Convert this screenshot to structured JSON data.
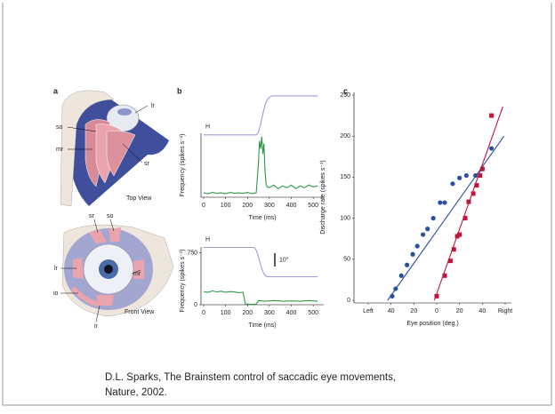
{
  "illustration": {
    "panel": "a",
    "top_view": {
      "labels": [
        "lr",
        "so",
        "mr",
        "sr"
      ],
      "caption": "Top View"
    },
    "front_view": {
      "labels": [
        "sr",
        "so",
        "lr",
        "mr",
        "io",
        "ir"
      ],
      "caption": "Front View"
    }
  },
  "chart_data": [
    {
      "type": "line",
      "panel": "b",
      "xlabel": "Time (ms)",
      "ylabel": "Frequency (spikes s⁻¹)",
      "xlim": [
        0,
        540
      ],
      "xticks": [
        0,
        100,
        200,
        300,
        400,
        500
      ],
      "ylim": [
        0,
        1200
      ],
      "y2lim": [
        -48,
        32
      ],
      "series": [
        {
          "name": "H",
          "color": "#a996d9",
          "axis": "y2",
          "x": [
            0,
            240,
            250,
            260,
            270,
            280,
            290,
            300,
            310,
            520
          ],
          "values": [
            0,
            0,
            2,
            8,
            16,
            23,
            27,
            29,
            30,
            30
          ]
        },
        {
          "color": "#2e9a4a",
          "x": [
            0,
            20,
            40,
            60,
            80,
            100,
            120,
            140,
            160,
            180,
            200,
            220,
            240,
            250,
            255,
            260,
            265,
            270,
            275,
            280,
            285,
            290,
            300,
            320,
            340,
            360,
            380,
            400,
            420,
            440,
            460,
            480,
            500,
            520
          ],
          "values": [
            50,
            40,
            55,
            45,
            50,
            40,
            55,
            45,
            50,
            45,
            55,
            40,
            50,
            400,
            650,
            560,
            700,
            500,
            620,
            300,
            150,
            120,
            110,
            140,
            100,
            130,
            110,
            140,
            100,
            130,
            110,
            140,
            120,
            130
          ]
        }
      ]
    },
    {
      "type": "line",
      "xlabel": "Time (ms)",
      "ylabel": "Frequency (spikes s⁻¹)",
      "xlim": [
        0,
        540
      ],
      "xticks": [
        0,
        100,
        200,
        300,
        400,
        500
      ],
      "ylim": [
        0,
        1000
      ],
      "yticks": [
        0,
        750
      ],
      "y2lim": [
        -43,
        9
      ],
      "scale_bar": {
        "value": 10,
        "label": "10°"
      },
      "series": [
        {
          "name": "H",
          "color": "#a996d9",
          "axis": "y2",
          "x": [
            0,
            230,
            240,
            250,
            260,
            270,
            280,
            290,
            520
          ],
          "values": [
            0,
            0,
            -2,
            -7,
            -13,
            -18,
            -21,
            -22,
            -22
          ]
        },
        {
          "color": "#2e9a4a",
          "x": [
            0,
            20,
            40,
            60,
            80,
            100,
            120,
            140,
            160,
            180,
            190,
            220,
            240,
            250,
            280,
            320,
            360,
            400,
            440,
            480,
            520
          ],
          "values": [
            190,
            180,
            200,
            185,
            195,
            180,
            190,
            185,
            175,
            180,
            10,
            5,
            10,
            60,
            50,
            60,
            50,
            55,
            50,
            60,
            50
          ]
        }
      ]
    },
    {
      "type": "scatter",
      "panel": "c",
      "xlabel": "Eye position (deg.)",
      "ylabel": "Discharge rate (spikes s⁻¹)",
      "xlim": [
        -60,
        60
      ],
      "xticks": [
        {
          "value": -60,
          "label": "Left"
        },
        {
          "value": -40,
          "label": "40"
        },
        {
          "value": -20,
          "label": "20"
        },
        0,
        20,
        40,
        {
          "value": 60,
          "label": "Right"
        }
      ],
      "ylim": [
        0,
        250
      ],
      "yticks": [
        0,
        50,
        100,
        150,
        200,
        250
      ],
      "series": [
        {
          "color": "#2b4f9e",
          "marker": "circle",
          "x": [
            -39,
            -36,
            -31,
            -26,
            -21,
            -17,
            -12,
            -8,
            -3,
            3,
            7,
            14,
            20,
            26,
            34,
            40,
            48
          ],
          "values": [
            5,
            14,
            30,
            43,
            56,
            66,
            80,
            87,
            100,
            119,
            119,
            142,
            149,
            152,
            152,
            160,
            185
          ]
        },
        {
          "color": "#c0143c",
          "marker": "square",
          "x": [
            0,
            7,
            12,
            15,
            18,
            20,
            25,
            28,
            32,
            35,
            38,
            40,
            48
          ],
          "values": [
            5,
            30,
            48,
            62,
            78,
            80,
            100,
            120,
            130,
            140,
            152,
            160,
            225
          ]
        },
        {
          "color": "#2b4f9e",
          "x": [
            -43,
            59
          ],
          "values": [
            0,
            200
          ]
        },
        {
          "color": "#c0143c",
          "x": [
            -2,
            58
          ],
          "values": [
            0,
            236
          ]
        }
      ]
    }
  ],
  "caption": [
    "D.L. Sparks, The Brainstem control of saccadic eye movements,",
    "Nature, 2002."
  ]
}
